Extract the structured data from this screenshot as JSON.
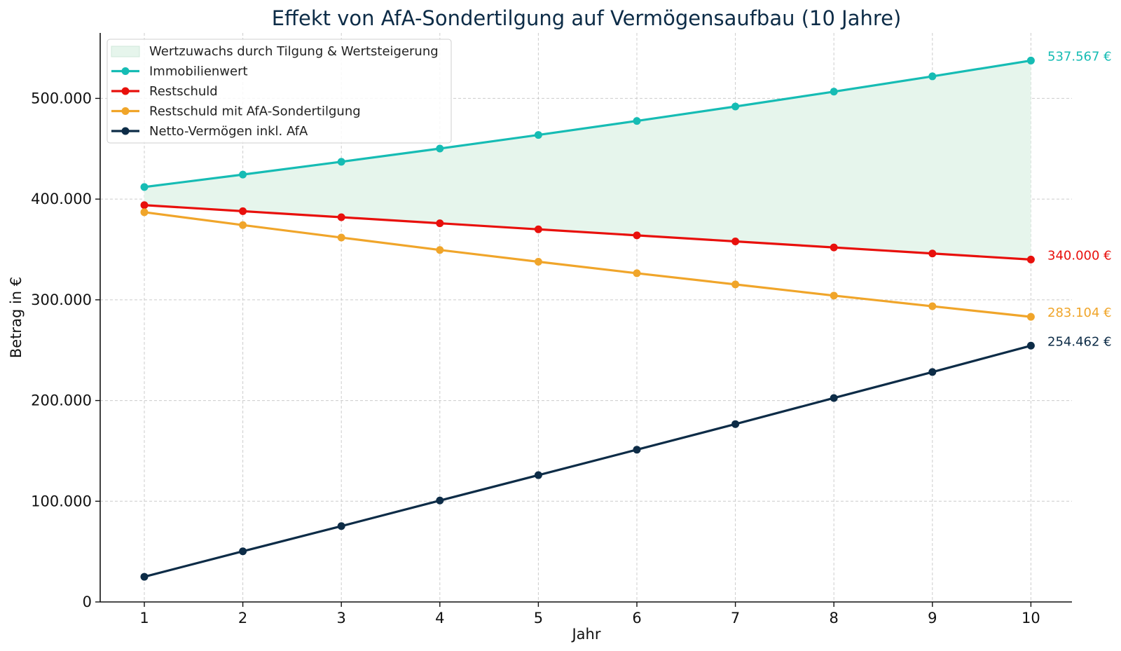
{
  "chart_data": {
    "type": "line",
    "title": "Effekt von AfA-Sondertilgung auf Vermögensaufbau (10 Jahre)",
    "xlabel": "Jahr",
    "ylabel": "Betrag in €",
    "x": [
      1,
      2,
      3,
      4,
      5,
      6,
      7,
      8,
      9,
      10
    ],
    "x_ticks": [
      "1",
      "2",
      "3",
      "4",
      "5",
      "6",
      "7",
      "8",
      "9",
      "10"
    ],
    "ylim": [
      0,
      565000
    ],
    "y_ticks": [
      0,
      100000,
      200000,
      300000,
      400000,
      500000
    ],
    "y_tick_labels": [
      "0",
      "100.000",
      "200.000",
      "300.000",
      "400.000",
      "500.000"
    ],
    "grid": true,
    "legend_position": "top-left",
    "fill": {
      "name": "Wertzuwachs durch Tilgung & Wertsteigerung",
      "upper_series": "Immobilienwert",
      "lower_series": "Restschuld",
      "color": "#e6f5ec"
    },
    "series": [
      {
        "name": "Immobilienwert",
        "color": "#16bcb4",
        "values": [
          412000,
          424360,
          437091,
          450204,
          463710,
          477621,
          491950,
          506708,
          521910,
          537567
        ],
        "end_label": "537.567 €"
      },
      {
        "name": "Restschuld",
        "color": "#e8100c",
        "values": [
          394000,
          388000,
          382000,
          376000,
          370000,
          364000,
          358000,
          352000,
          346000,
          340000
        ],
        "end_label": "340.000 €"
      },
      {
        "name": "Restschuld mit AfA-Sondertilgung",
        "color": "#f0a52a",
        "values": [
          387000,
          374200,
          361800,
          349500,
          337800,
          326400,
          315300,
          304200,
          293600,
          283104
        ],
        "end_label": "283.104 €"
      },
      {
        "name": "Netto-Vermögen inkl. AfA",
        "color": "#0d2c47",
        "values": [
          25000,
          50300,
          75300,
          100700,
          125900,
          151200,
          176600,
          202500,
          228300,
          254462
        ],
        "end_label": "254.462 €"
      }
    ]
  },
  "colors": {
    "title": "#0d2c47",
    "grid": "#cccccc",
    "axis": "#111111"
  }
}
